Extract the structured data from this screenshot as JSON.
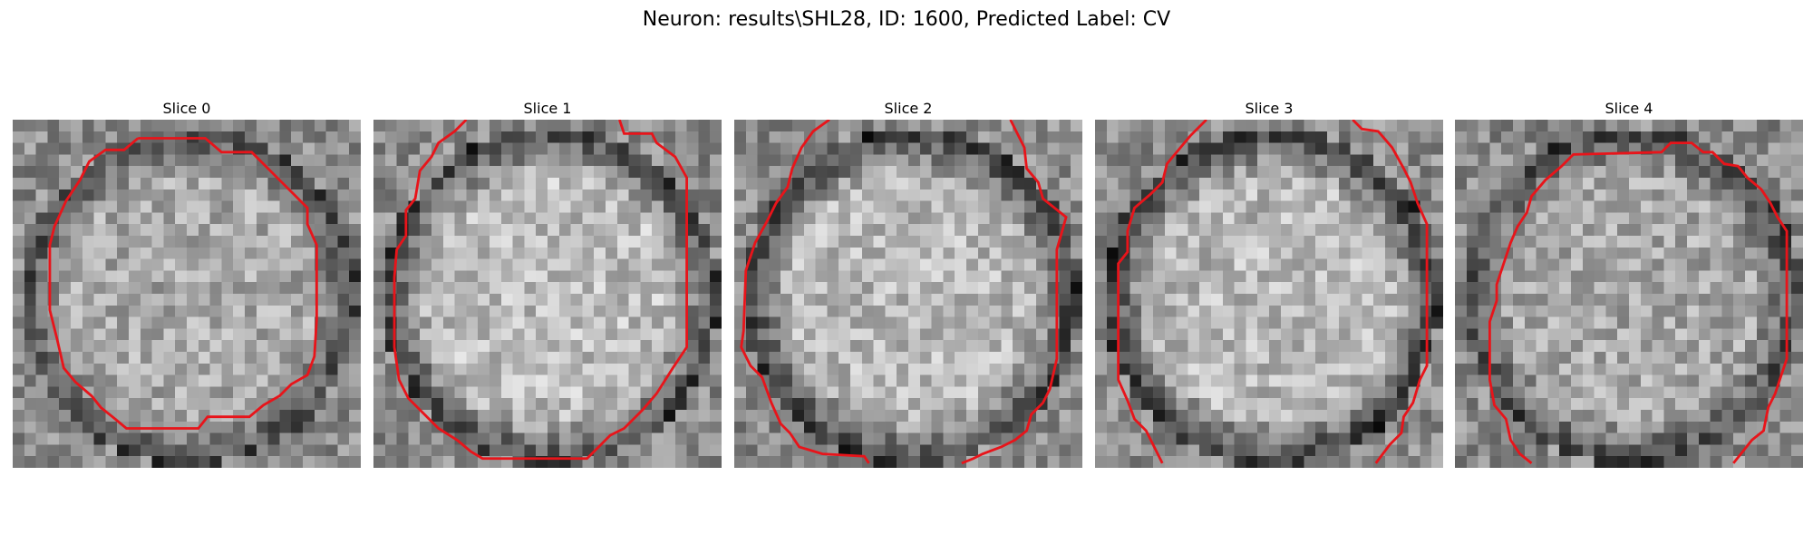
{
  "figure": {
    "title": "Neuron: results\\SHL28, ID: 1600, Predicted Label: CV"
  },
  "panels": [
    {
      "label": "Slice 0",
      "seed": 11,
      "center_brightness": 0.66,
      "ring_darkness": 0.26,
      "contour": [
        [
          10.8,
          1.6
        ],
        [
          16.6,
          1.6
        ],
        [
          18.0,
          2.8
        ],
        [
          20.6,
          2.8
        ],
        [
          23.0,
          5.2
        ],
        [
          24.2,
          6.4
        ],
        [
          25.4,
          7.6
        ],
        [
          25.4,
          9.0
        ],
        [
          26.2,
          10.8
        ],
        [
          26.2,
          17.2
        ],
        [
          26.0,
          20.4
        ],
        [
          25.4,
          22.0
        ],
        [
          24.0,
          22.8
        ],
        [
          23.0,
          23.8
        ],
        [
          21.6,
          24.6
        ],
        [
          20.4,
          25.6
        ],
        [
          16.8,
          25.6
        ],
        [
          16.0,
          26.6
        ],
        [
          9.8,
          26.6
        ],
        [
          8.6,
          25.6
        ],
        [
          7.6,
          24.8
        ],
        [
          6.8,
          23.8
        ],
        [
          5.4,
          22.6
        ],
        [
          4.4,
          21.4
        ],
        [
          3.8,
          18.8
        ],
        [
          3.2,
          16.4
        ],
        [
          3.2,
          10.8
        ],
        [
          3.6,
          9.2
        ],
        [
          4.6,
          7.0
        ],
        [
          5.8,
          5.2
        ],
        [
          6.6,
          3.6
        ],
        [
          8.0,
          2.6
        ],
        [
          9.6,
          2.6
        ]
      ]
    },
    {
      "label": "Slice 1",
      "seed": 23,
      "center_brightness": 0.74,
      "ring_darkness": 0.22,
      "contour_parts": [
        [
          [
            8.0,
            0.0
          ],
          [
            7.0,
            1.0
          ],
          [
            5.6,
            2.0
          ],
          [
            5.0,
            3.2
          ],
          [
            4.0,
            4.4
          ],
          [
            3.6,
            6.8
          ],
          [
            2.8,
            7.8
          ],
          [
            2.8,
            10.0
          ],
          [
            2.0,
            11.2
          ],
          [
            1.8,
            13.6
          ],
          [
            1.8,
            19.6
          ],
          [
            2.2,
            22.4
          ],
          [
            3.0,
            24.0
          ],
          [
            4.0,
            25.0
          ],
          [
            5.6,
            26.6
          ],
          [
            7.2,
            27.6
          ],
          [
            8.4,
            28.6
          ],
          [
            9.4,
            29.2
          ],
          [
            18.4,
            29.2
          ],
          [
            19.4,
            28.2
          ],
          [
            20.4,
            27.2
          ],
          [
            21.6,
            26.6
          ],
          [
            23.2,
            25.0
          ],
          [
            24.4,
            23.6
          ],
          [
            25.8,
            21.4
          ],
          [
            27.0,
            19.6
          ],
          [
            27.0,
            5.0
          ],
          [
            26.0,
            3.2
          ],
          [
            24.4,
            2.0
          ],
          [
            24.0,
            1.2
          ],
          [
            21.6,
            1.2
          ],
          [
            21.2,
            0.0
          ]
        ]
      ]
    },
    {
      "label": "Slice 2",
      "seed": 37,
      "center_brightness": 0.72,
      "ring_darkness": 0.18,
      "contour_parts": [
        [
          [
            8.2,
            0.0
          ],
          [
            6.8,
            1.0
          ],
          [
            5.8,
            2.4
          ],
          [
            5.0,
            4.2
          ],
          [
            4.6,
            5.8
          ],
          [
            3.6,
            7.2
          ],
          [
            2.8,
            8.8
          ],
          [
            1.8,
            10.6
          ],
          [
            1.0,
            13.0
          ],
          [
            0.8,
            18.2
          ],
          [
            0.6,
            19.6
          ],
          [
            1.4,
            21.2
          ],
          [
            2.4,
            22.2
          ],
          [
            3.2,
            24.4
          ],
          [
            4.0,
            26.2
          ],
          [
            4.8,
            27.0
          ],
          [
            5.6,
            28.2
          ],
          [
            7.6,
            28.8
          ],
          [
            11.2,
            29.0
          ],
          [
            11.6,
            29.6
          ]
        ],
        [
          [
            23.8,
            0.0
          ],
          [
            24.4,
            1.2
          ],
          [
            25.0,
            2.4
          ],
          [
            25.2,
            4.2
          ],
          [
            26.2,
            5.4
          ],
          [
            26.6,
            6.8
          ],
          [
            28.6,
            8.4
          ],
          [
            28.2,
            9.8
          ],
          [
            27.8,
            11.2
          ],
          [
            27.8,
            20.6
          ],
          [
            27.2,
            23.2
          ],
          [
            26.6,
            24.4
          ],
          [
            25.6,
            25.4
          ],
          [
            25.2,
            26.8
          ],
          [
            24.2,
            27.6
          ],
          [
            23.0,
            28.2
          ],
          [
            21.4,
            28.8
          ],
          [
            20.6,
            29.2
          ],
          [
            19.6,
            29.6
          ]
        ]
      ]
    },
    {
      "label": "Slice 3",
      "seed": 51,
      "center_brightness": 0.72,
      "ring_darkness": 0.18,
      "contour_parts": [
        [
          [
            9.6,
            0.0
          ],
          [
            8.2,
            1.4
          ],
          [
            7.2,
            2.6
          ],
          [
            6.2,
            3.8
          ],
          [
            5.8,
            5.4
          ],
          [
            4.8,
            6.4
          ],
          [
            3.4,
            7.6
          ],
          [
            2.8,
            9.6
          ],
          [
            2.8,
            11.4
          ],
          [
            2.0,
            12.4
          ],
          [
            2.0,
            22.4
          ],
          [
            2.8,
            24.2
          ],
          [
            3.4,
            25.8
          ],
          [
            4.4,
            26.8
          ],
          [
            5.0,
            28.0
          ],
          [
            5.8,
            29.6
          ]
        ],
        [
          [
            22.2,
            0.0
          ],
          [
            23.0,
            0.8
          ],
          [
            24.4,
            1.0
          ],
          [
            25.6,
            2.4
          ],
          [
            26.6,
            4.2
          ],
          [
            27.2,
            5.4
          ],
          [
            27.8,
            7.2
          ],
          [
            28.6,
            9.0
          ],
          [
            28.6,
            21.2
          ],
          [
            28.0,
            22.4
          ],
          [
            27.4,
            24.4
          ],
          [
            26.6,
            25.6
          ],
          [
            26.4,
            27.0
          ],
          [
            25.4,
            28.0
          ],
          [
            24.2,
            29.6
          ]
        ]
      ]
    },
    {
      "label": "Slice 4",
      "seed": 67,
      "center_brightness": 0.66,
      "ring_darkness": 0.24,
      "contour_parts": [
        [
          [
            6.6,
            29.6
          ],
          [
            5.6,
            28.8
          ],
          [
            4.8,
            27.6
          ],
          [
            4.4,
            25.8
          ],
          [
            3.4,
            24.6
          ],
          [
            3.0,
            22.4
          ],
          [
            3.0,
            17.4
          ],
          [
            3.6,
            15.6
          ],
          [
            3.6,
            14.2
          ],
          [
            4.2,
            12.4
          ],
          [
            4.8,
            10.6
          ],
          [
            5.4,
            9.2
          ],
          [
            6.2,
            8.0
          ],
          [
            6.6,
            6.6
          ],
          [
            7.8,
            5.2
          ],
          [
            9.2,
            4.0
          ],
          [
            10.2,
            3.0
          ],
          [
            17.8,
            2.8
          ],
          [
            18.6,
            2.0
          ],
          [
            20.4,
            2.0
          ],
          [
            21.4,
            2.8
          ],
          [
            22.2,
            2.8
          ],
          [
            23.2,
            3.8
          ],
          [
            24.4,
            4.0
          ],
          [
            25.2,
            5.0
          ],
          [
            26.4,
            6.0
          ],
          [
            27.2,
            7.2
          ],
          [
            27.8,
            8.4
          ],
          [
            28.6,
            9.6
          ],
          [
            28.6,
            20.6
          ],
          [
            28.0,
            22.4
          ],
          [
            27.6,
            23.6
          ],
          [
            27.0,
            24.8
          ],
          [
            26.6,
            26.8
          ],
          [
            25.6,
            27.6
          ],
          [
            24.8,
            28.6
          ],
          [
            24.0,
            29.6
          ]
        ]
      ]
    }
  ],
  "colors": {
    "contour": "#e8141a",
    "background": "#ffffff"
  }
}
